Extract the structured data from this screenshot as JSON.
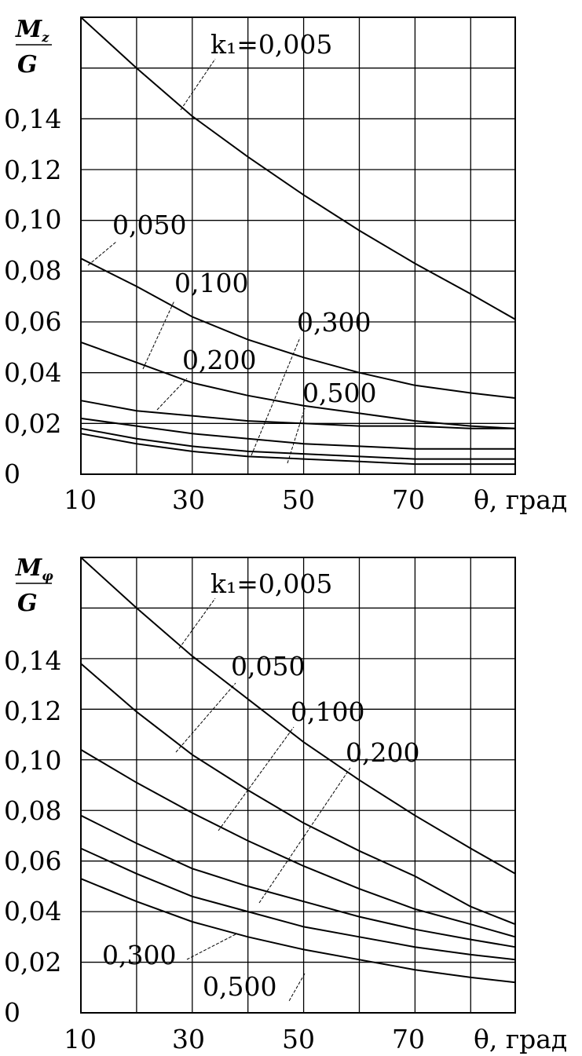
{
  "chart_data": [
    {
      "type": "line",
      "ylabel": {
        "num_main": "M",
        "num_sub": "z",
        "den": "G"
      },
      "xlabel": "θ, град",
      "xlim": [
        10,
        88
      ],
      "ylim": [
        0,
        0.18
      ],
      "x_ticks": [
        "10",
        "30",
        "50",
        "70"
      ],
      "y_ticks": [
        "0",
        "0,02",
        "0,04",
        "0,06",
        "0,08",
        "0,10",
        "0,12",
        "0,14"
      ],
      "grid": true,
      "series": [
        {
          "name": "k₁=0,005",
          "x": [
            10,
            20,
            30,
            40,
            50,
            60,
            70,
            80,
            88
          ],
          "y": [
            0.18,
            0.16,
            0.141,
            0.125,
            0.11,
            0.096,
            0.083,
            0.071,
            0.061
          ]
        },
        {
          "name": "0,050",
          "x": [
            10,
            20,
            30,
            40,
            50,
            60,
            70,
            80,
            88
          ],
          "y": [
            0.085,
            0.074,
            0.062,
            0.053,
            0.046,
            0.04,
            0.035,
            0.032,
            0.03
          ]
        },
        {
          "name": "0,100",
          "x": [
            10,
            20,
            30,
            40,
            50,
            60,
            70,
            80,
            88
          ],
          "y": [
            0.052,
            0.044,
            0.036,
            0.031,
            0.027,
            0.024,
            0.021,
            0.019,
            0.018
          ]
        },
        {
          "name": "0,200",
          "x": [
            10,
            20,
            30,
            40,
            50,
            60,
            70,
            80,
            88
          ],
          "y": [
            0.029,
            0.025,
            0.023,
            0.021,
            0.02,
            0.019,
            0.019,
            0.018,
            0.018
          ]
        },
        {
          "name": "0,300",
          "x": [
            10,
            20,
            30,
            40,
            50,
            60,
            70,
            80,
            88
          ],
          "y": [
            0.022,
            0.019,
            0.016,
            0.014,
            0.012,
            0.011,
            0.01,
            0.01,
            0.01
          ]
        },
        {
          "name": "0,500",
          "x": [
            10,
            20,
            30,
            40,
            50,
            60,
            70,
            80,
            88
          ],
          "y": [
            0.016,
            0.012,
            0.009,
            0.007,
            0.006,
            0.005,
            0.004,
            0.004,
            0.004
          ]
        }
      ],
      "extra_curves": [
        {
          "x": [
            10,
            20,
            30,
            40,
            50,
            60,
            70,
            80,
            88
          ],
          "y": [
            0.018,
            0.014,
            0.011,
            0.009,
            0.008,
            0.007,
            0.006,
            0.006,
            0.006
          ]
        }
      ]
    },
    {
      "type": "line",
      "ylabel": {
        "num_main": "M",
        "num_sub": "φ",
        "den": "G"
      },
      "xlabel": "θ, град",
      "xlim": [
        10,
        88
      ],
      "ylim": [
        0,
        0.18
      ],
      "x_ticks": [
        "10",
        "30",
        "50",
        "70"
      ],
      "y_ticks": [
        "0",
        "0,02",
        "0,04",
        "0,06",
        "0,08",
        "0,10",
        "0,12",
        "0,14"
      ],
      "grid": true,
      "series": [
        {
          "name": "k₁=0,005",
          "x": [
            10,
            20,
            30,
            40,
            50,
            60,
            70,
            80,
            88
          ],
          "y": [
            0.18,
            0.16,
            0.141,
            0.124,
            0.107,
            0.092,
            0.078,
            0.065,
            0.055
          ]
        },
        {
          "name": "0,050",
          "x": [
            10,
            20,
            30,
            40,
            50,
            60,
            70,
            80,
            88
          ],
          "y": [
            0.138,
            0.119,
            0.102,
            0.088,
            0.075,
            0.064,
            0.054,
            0.042,
            0.035
          ]
        },
        {
          "name": "0,100",
          "x": [
            10,
            20,
            30,
            40,
            50,
            60,
            70,
            80,
            88
          ],
          "y": [
            0.104,
            0.091,
            0.079,
            0.068,
            0.058,
            0.049,
            0.041,
            0.035,
            0.03
          ]
        },
        {
          "name": "0,200",
          "x": [
            10,
            20,
            30,
            40,
            50,
            60,
            70,
            80,
            88
          ],
          "y": [
            0.078,
            0.067,
            0.057,
            0.05,
            0.044,
            0.038,
            0.033,
            0.029,
            0.026
          ]
        },
        {
          "name": "0,300",
          "x": [
            10,
            20,
            30,
            40,
            50,
            60,
            70,
            80,
            88
          ],
          "y": [
            0.065,
            0.055,
            0.046,
            0.04,
            0.034,
            0.03,
            0.026,
            0.023,
            0.021
          ]
        },
        {
          "name": "0,500",
          "x": [
            10,
            20,
            30,
            40,
            50,
            60,
            70,
            80,
            88
          ],
          "y": [
            0.053,
            0.044,
            0.036,
            0.03,
            0.025,
            0.021,
            0.017,
            0.014,
            0.012
          ]
        }
      ]
    }
  ]
}
